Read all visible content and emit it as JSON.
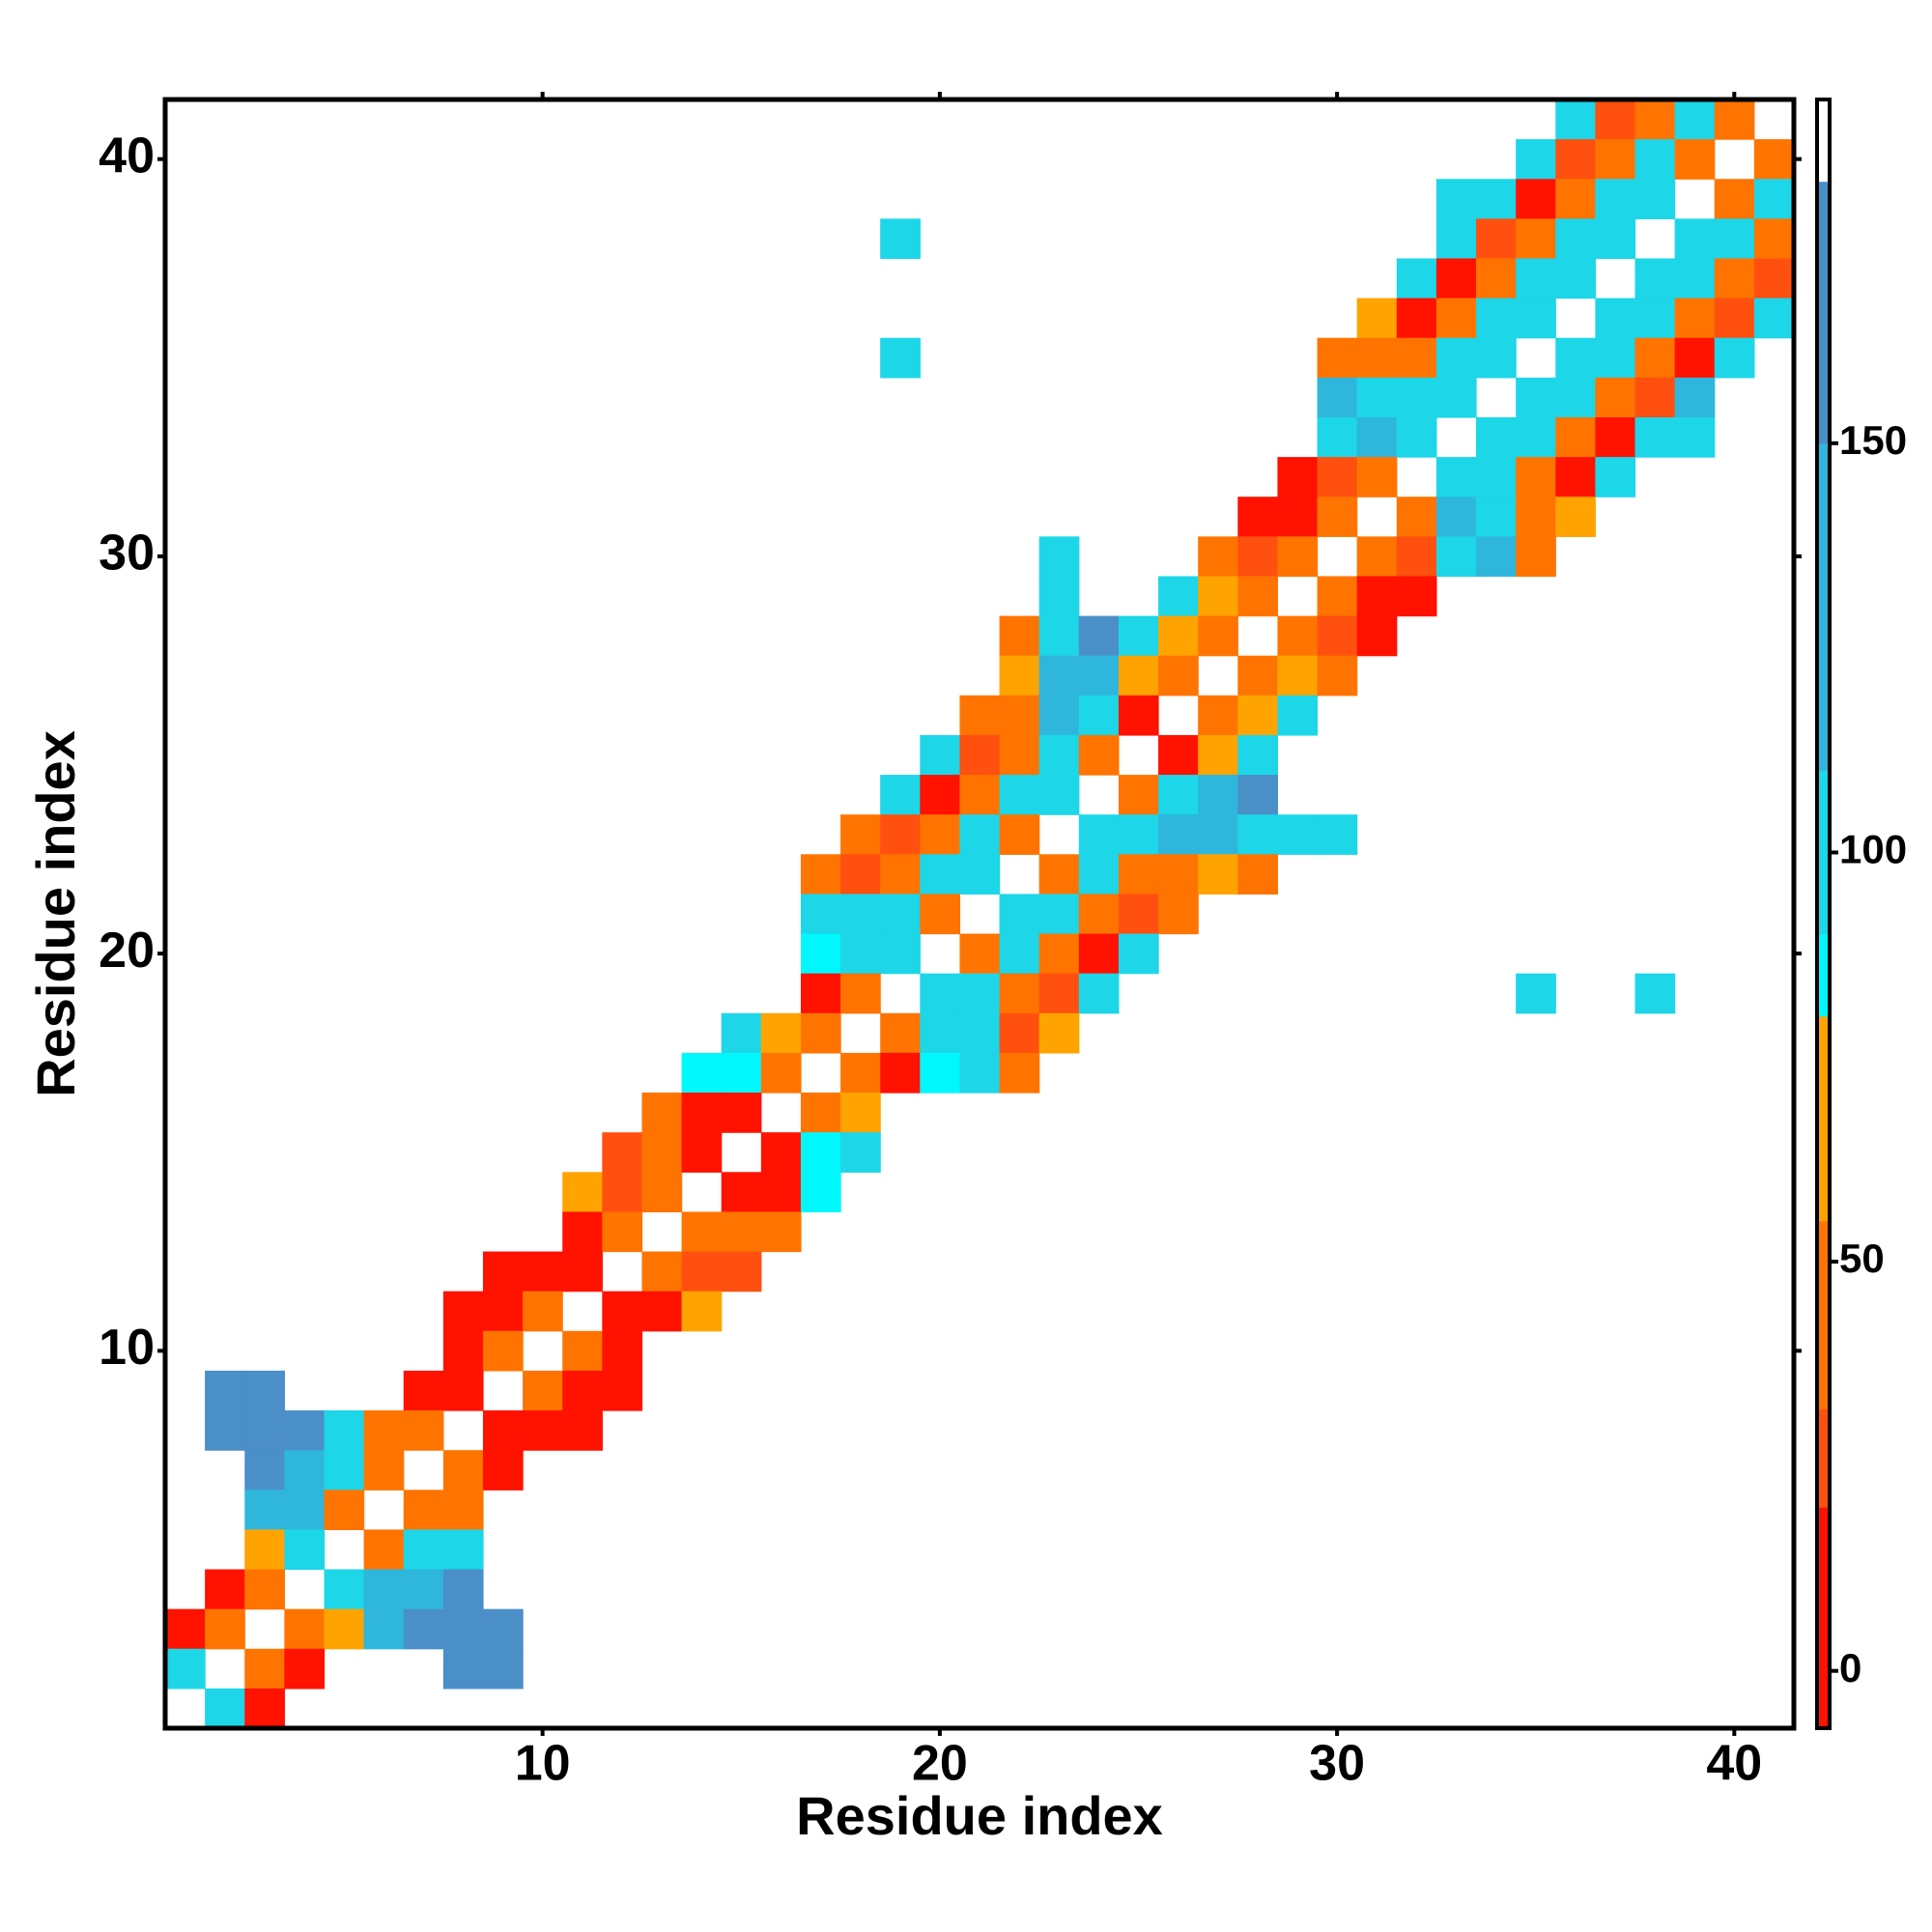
{
  "chart_data": {
    "type": "heatmap",
    "xlabel": "Residue index",
    "ylabel": "Residue index",
    "xlim": [
      0.5,
      41.5
    ],
    "ylim": [
      0.5,
      41.5
    ],
    "xticks": [
      10,
      20,
      30,
      40
    ],
    "yticks": [
      10,
      20,
      30,
      40
    ],
    "zlim": [
      -7,
      192
    ],
    "zticks": [
      0,
      50,
      100,
      150
    ],
    "colorscale": [
      [
        -7,
        "#ff1200"
      ],
      [
        20,
        "#ff5010"
      ],
      [
        32,
        "#ff7400"
      ],
      [
        55,
        "#ffa300"
      ],
      [
        80,
        "#00f7fb"
      ],
      [
        90,
        "#1dd6e8"
      ],
      [
        110,
        "#2fb6dd"
      ],
      [
        150,
        "#4a8fc7"
      ],
      [
        182,
        "#ffffff"
      ]
    ],
    "rows": [
      {
        "y": 41,
        "x": [
          36,
          37,
          38,
          39,
          40
        ],
        "values": [
          95,
          25,
          40,
          95,
          40
        ]
      },
      {
        "y": 40,
        "x": [
          35,
          36,
          37,
          38,
          39,
          41
        ],
        "values": [
          95,
          25,
          40,
          95,
          40,
          40
        ]
      },
      {
        "y": 39,
        "x": [
          33,
          34,
          35,
          36,
          37,
          38,
          40,
          41
        ],
        "values": [
          95,
          95,
          10,
          40,
          95,
          95,
          40,
          95
        ]
      },
      {
        "y": 38,
        "x": [
          19,
          33,
          34,
          35,
          36,
          37,
          39,
          40,
          41
        ],
        "values": [
          95,
          95,
          25,
          40,
          95,
          95,
          95,
          95,
          40
        ]
      },
      {
        "y": 37,
        "x": [
          32,
          33,
          34,
          35,
          36,
          38,
          39,
          40,
          41
        ],
        "values": [
          95,
          10,
          40,
          95,
          95,
          95,
          95,
          40,
          25
        ]
      },
      {
        "y": 36,
        "x": [
          31,
          32,
          33,
          34,
          35,
          37,
          38,
          39,
          40,
          41
        ],
        "values": [
          65,
          10,
          40,
          95,
          95,
          95,
          95,
          40,
          25,
          95
        ]
      },
      {
        "y": 35,
        "x": [
          19,
          30,
          31,
          32,
          33,
          34,
          36,
          37,
          38,
          39,
          40
        ],
        "values": [
          95,
          40,
          40,
          40,
          95,
          95,
          95,
          95,
          40,
          10,
          95
        ]
      },
      {
        "y": 34,
        "x": [
          30,
          31,
          32,
          33,
          35,
          36,
          37,
          38,
          39
        ],
        "values": [
          120,
          95,
          95,
          95,
          95,
          95,
          40,
          25,
          120
        ]
      },
      {
        "y": 33,
        "x": [
          30,
          31,
          32,
          34,
          35,
          36,
          37,
          38,
          39
        ],
        "values": [
          95,
          120,
          95,
          95,
          95,
          40,
          10,
          95,
          95
        ]
      },
      {
        "y": 32,
        "x": [
          29,
          30,
          31,
          33,
          34,
          35,
          36,
          37
        ],
        "values": [
          10,
          25,
          40,
          95,
          95,
          40,
          10,
          95
        ]
      },
      {
        "y": 31,
        "x": [
          28,
          29,
          30,
          32,
          33,
          34,
          35,
          36
        ],
        "values": [
          10,
          10,
          40,
          40,
          120,
          95,
          40,
          65
        ]
      },
      {
        "y": 30,
        "x": [
          23,
          27,
          28,
          29,
          31,
          32,
          33,
          34,
          35
        ],
        "values": [
          95,
          40,
          25,
          40,
          40,
          25,
          95,
          120,
          40
        ]
      },
      {
        "y": 29,
        "x": [
          23,
          26,
          27,
          28,
          30,
          31,
          32
        ],
        "values": [
          95,
          95,
          65,
          40,
          40,
          10,
          10
        ]
      },
      {
        "y": 28,
        "x": [
          22,
          23,
          24,
          25,
          26,
          27,
          29,
          30,
          31
        ],
        "values": [
          40,
          95,
          165,
          95,
          65,
          40,
          40,
          25,
          10
        ]
      },
      {
        "y": 27,
        "x": [
          22,
          23,
          24,
          25,
          26,
          28,
          29,
          30
        ],
        "values": [
          65,
          120,
          120,
          65,
          40,
          40,
          65,
          40
        ]
      },
      {
        "y": 26,
        "x": [
          21,
          22,
          23,
          24,
          25,
          27,
          28,
          29
        ],
        "values": [
          40,
          40,
          120,
          95,
          10,
          40,
          65,
          95
        ]
      },
      {
        "y": 25,
        "x": [
          20,
          21,
          22,
          23,
          24,
          26,
          27,
          28
        ],
        "values": [
          95,
          25,
          40,
          95,
          40,
          10,
          65,
          95
        ]
      },
      {
        "y": 24,
        "x": [
          19,
          20,
          21,
          22,
          23,
          25,
          26,
          27,
          28
        ],
        "values": [
          95,
          10,
          40,
          95,
          95,
          40,
          95,
          120,
          165
        ]
      },
      {
        "y": 23,
        "x": [
          18,
          19,
          20,
          21,
          22,
          24,
          25,
          26,
          27,
          28,
          29,
          30
        ],
        "values": [
          40,
          25,
          40,
          95,
          40,
          95,
          95,
          120,
          120,
          95,
          95,
          95
        ]
      },
      {
        "y": 22,
        "x": [
          17,
          18,
          19,
          20,
          21,
          23,
          24,
          25,
          26,
          27,
          28
        ],
        "values": [
          40,
          25,
          40,
          95,
          95,
          40,
          95,
          40,
          40,
          65,
          40
        ]
      },
      {
        "y": 21,
        "x": [
          17,
          18,
          19,
          20,
          22,
          23,
          24,
          25,
          26
        ],
        "values": [
          95,
          95,
          95,
          40,
          95,
          95,
          40,
          25,
          40
        ]
      },
      {
        "y": 20,
        "x": [
          17,
          18,
          19,
          21,
          22,
          23,
          24,
          25
        ],
        "values": [
          85,
          95,
          95,
          40,
          95,
          40,
          10,
          95
        ]
      },
      {
        "y": 19,
        "x": [
          17,
          18,
          20,
          21,
          22,
          23,
          24,
          35,
          38
        ],
        "values": [
          10,
          40,
          95,
          95,
          40,
          25,
          95,
          95,
          95
        ]
      },
      {
        "y": 18,
        "x": [
          15,
          16,
          17,
          19,
          20,
          21,
          22,
          23
        ],
        "values": [
          95,
          65,
          40,
          40,
          95,
          95,
          25,
          65
        ]
      },
      {
        "y": 17,
        "x": [
          14,
          15,
          16,
          18,
          19,
          20,
          21,
          22
        ],
        "values": [
          85,
          85,
          40,
          40,
          10,
          85,
          95,
          40
        ]
      },
      {
        "y": 16,
        "x": [
          13,
          14,
          15,
          17,
          18
        ],
        "values": [
          40,
          10,
          10,
          40,
          65
        ]
      },
      {
        "y": 15,
        "x": [
          12,
          13,
          14,
          16,
          17,
          18
        ],
        "values": [
          25,
          40,
          10,
          10,
          85,
          95
        ]
      },
      {
        "y": 14,
        "x": [
          11,
          12,
          13,
          15,
          16,
          17
        ],
        "values": [
          65,
          25,
          40,
          10,
          10,
          85
        ]
      },
      {
        "y": 13,
        "x": [
          11,
          12,
          14,
          15,
          16
        ],
        "values": [
          10,
          40,
          40,
          40,
          40
        ]
      },
      {
        "y": 12,
        "x": [
          9,
          10,
          11,
          13,
          14,
          15
        ],
        "values": [
          10,
          10,
          10,
          40,
          25,
          25
        ]
      },
      {
        "y": 11,
        "x": [
          8,
          9,
          10,
          12,
          13,
          14
        ],
        "values": [
          10,
          10,
          40,
          10,
          10,
          65
        ]
      },
      {
        "y": 10,
        "x": [
          8,
          9,
          11,
          12
        ],
        "values": [
          10,
          40,
          40,
          10
        ]
      },
      {
        "y": 9,
        "x": [
          2,
          3,
          7,
          8,
          10,
          11,
          12
        ],
        "values": [
          165,
          165,
          10,
          10,
          40,
          10,
          10
        ]
      },
      {
        "y": 8,
        "x": [
          2,
          3,
          4,
          5,
          6,
          7,
          9,
          10,
          11
        ],
        "values": [
          165,
          165,
          165,
          95,
          40,
          40,
          10,
          10,
          10
        ]
      },
      {
        "y": 7,
        "x": [
          3,
          4,
          5,
          6,
          8,
          9
        ],
        "values": [
          165,
          120,
          95,
          40,
          40,
          10
        ]
      },
      {
        "y": 6,
        "x": [
          3,
          4,
          5,
          7,
          8
        ],
        "values": [
          120,
          120,
          40,
          40,
          40
        ]
      },
      {
        "y": 5,
        "x": [
          3,
          4,
          6,
          7,
          8
        ],
        "values": [
          65,
          95,
          40,
          95,
          95
        ]
      },
      {
        "y": 4,
        "x": [
          2,
          3,
          5,
          6,
          7,
          8
        ],
        "values": [
          10,
          40,
          95,
          120,
          120,
          165
        ]
      },
      {
        "y": 3,
        "x": [
          1,
          2,
          4,
          5,
          6,
          7,
          8,
          9
        ],
        "values": [
          10,
          40,
          40,
          65,
          120,
          165,
          165,
          165
        ]
      },
      {
        "y": 2,
        "x": [
          1,
          3,
          4,
          8,
          9
        ],
        "values": [
          95,
          40,
          10,
          165,
          165
        ]
      },
      {
        "y": 1,
        "x": [
          2,
          3
        ],
        "values": [
          95,
          10
        ]
      }
    ]
  }
}
